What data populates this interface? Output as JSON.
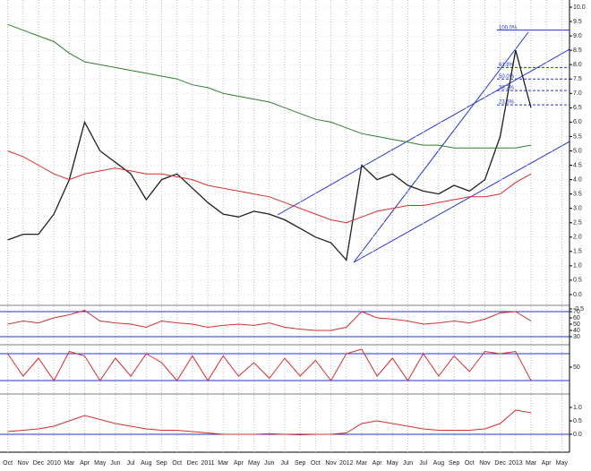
{
  "chart_data": [
    {
      "type": "line",
      "ylim": [
        -0.5,
        10.0
      ],
      "yticks": [
        {
          "value": 10,
          "label": "10.0"
        },
        {
          "value": 9.5,
          "label": "9.5"
        },
        {
          "value": 9,
          "label": "9.0"
        },
        {
          "value": 8.5,
          "label": "8.5"
        },
        {
          "value": 8,
          "label": "8.0"
        },
        {
          "value": 7.5,
          "label": "7.5"
        },
        {
          "value": 7,
          "label": "7.0"
        },
        {
          "value": 6.5,
          "label": "6.5"
        },
        {
          "value": 6,
          "label": "6.0"
        },
        {
          "value": 5.5,
          "label": "5.5"
        },
        {
          "value": 5,
          "label": "5.0"
        },
        {
          "value": 4.5,
          "label": "4.5"
        },
        {
          "value": 4,
          "label": "4.0"
        },
        {
          "value": 3.5,
          "label": "3.5"
        },
        {
          "value": 3,
          "label": "3.0"
        },
        {
          "value": 2.5,
          "label": "2.5"
        },
        {
          "value": 2,
          "label": "2.0"
        },
        {
          "value": 1.5,
          "label": "1.5"
        },
        {
          "value": 1,
          "label": "1.0"
        },
        {
          "value": 0.5,
          "label": "0.5"
        },
        {
          "value": 0,
          "label": "0.0"
        },
        {
          "value": -0.5,
          "label": "-0.5"
        }
      ],
      "series": [
        {
          "color": "#1f1f1f",
          "values": [
            1.9,
            2.1,
            2.1,
            2.8,
            4.0,
            6.0,
            5.0,
            4.6,
            4.2,
            3.3,
            4.0,
            4.2,
            3.7,
            3.2,
            2.8,
            2.7,
            2.9,
            2.8,
            2.6,
            2.3,
            2.0,
            1.8,
            1.2,
            4.5,
            4.0,
            4.2,
            3.8,
            3.6,
            3.5,
            3.8,
            3.6,
            4.0,
            5.5,
            8.5,
            6.5,
            null,
            null
          ]
        },
        {
          "color": "#2e7d32",
          "values": [
            9.4,
            9.2,
            9.0,
            8.8,
            8.4,
            8.1,
            8.0,
            7.9,
            7.8,
            7.7,
            7.6,
            7.5,
            7.3,
            7.2,
            7.0,
            6.9,
            6.8,
            6.7,
            6.5,
            6.3,
            6.1,
            6.0,
            5.8,
            5.6,
            5.5,
            5.4,
            5.3,
            5.2,
            5.2,
            5.1,
            5.1,
            5.1,
            5.1,
            5.1,
            5.2,
            null,
            null
          ]
        },
        {
          "color": "#d32f2f",
          "values": [
            5.0,
            4.8,
            4.5,
            4.2,
            4.0,
            4.2,
            4.3,
            4.4,
            4.3,
            4.2,
            4.2,
            4.1,
            4.0,
            3.8,
            3.7,
            3.6,
            3.5,
            3.4,
            3.2,
            3.0,
            2.8,
            2.6,
            2.5,
            2.7,
            2.9,
            3.0,
            3.1,
            3.1,
            3.2,
            3.3,
            3.4,
            3.4,
            3.5,
            3.9,
            4.2,
            null,
            null
          ]
        }
      ],
      "fib_levels": [
        {
          "label": "100.0%",
          "value": 9.2
        },
        {
          "label": "61.8%",
          "value": 7.9
        },
        {
          "label": "50.0%",
          "value": 7.5
        },
        {
          "label": "38.2%",
          "value": 7.1
        },
        {
          "label": "23.6%",
          "value": 6.6
        }
      ],
      "grid": true
    },
    {
      "type": "line",
      "ylim": [
        20,
        80
      ],
      "yticks": [
        70,
        60,
        50,
        40,
        30
      ],
      "ref_lines": [
        70,
        30
      ],
      "series": [
        {
          "color": "#d32f2f",
          "values": [
            50,
            55,
            52,
            60,
            65,
            72,
            55,
            52,
            50,
            45,
            55,
            52,
            50,
            45,
            48,
            50,
            48,
            52,
            45,
            42,
            40,
            40,
            45,
            70,
            60,
            58,
            55,
            50,
            52,
            55,
            52,
            58,
            68,
            70,
            55,
            null,
            null
          ]
        }
      ]
    },
    {
      "type": "line",
      "ylim": [
        0,
        100
      ],
      "yticks": [
        50
      ],
      "ref_lines": [
        80,
        20
      ],
      "series": [
        {
          "color": "#d32f2f",
          "values": [
            80,
            30,
            70,
            20,
            85,
            75,
            20,
            70,
            30,
            80,
            60,
            20,
            75,
            20,
            75,
            30,
            60,
            25,
            70,
            30,
            65,
            20,
            80,
            90,
            30,
            70,
            20,
            80,
            30,
            75,
            40,
            85,
            80,
            85,
            20,
            null,
            null
          ]
        }
      ]
    },
    {
      "type": "line",
      "ylim": [
        -0.5,
        1.5
      ],
      "yticks": [
        {
          "value": 1,
          "label": "1.0"
        },
        {
          "value": 0.5,
          "label": "0.5"
        },
        {
          "value": 0,
          "label": "0.0"
        }
      ],
      "ref_lines": [
        0
      ],
      "series": [
        {
          "color": "#d32f2f",
          "values": [
            0.1,
            0.15,
            0.2,
            0.3,
            0.5,
            0.7,
            0.55,
            0.4,
            0.3,
            0.2,
            0.15,
            0.15,
            0.1,
            0.05,
            0.0,
            0.0,
            0.0,
            0.02,
            0.0,
            -0.02,
            0.0,
            0.0,
            0.05,
            0.4,
            0.5,
            0.4,
            0.3,
            0.2,
            0.15,
            0.15,
            0.15,
            0.2,
            0.4,
            0.9,
            0.8,
            null,
            null
          ]
        }
      ],
      "categories": [
        "Oct",
        "Nov",
        "Dec",
        "2010",
        "Mar",
        "Apr",
        "May",
        "Jun",
        "Jul",
        "Aug",
        "Sep",
        "Oct",
        "Dec",
        "2011",
        "Mar",
        "Apr",
        "May",
        "Jun",
        "Jul",
        "Sep",
        "Oct",
        "Nov",
        "2012",
        "Mar",
        "Apr",
        "May",
        "Jun",
        "Jul",
        "Aug",
        "Sep",
        "Oct",
        "Nov",
        "Dec",
        "2013",
        "Mar",
        "Apr",
        "May"
      ]
    }
  ]
}
